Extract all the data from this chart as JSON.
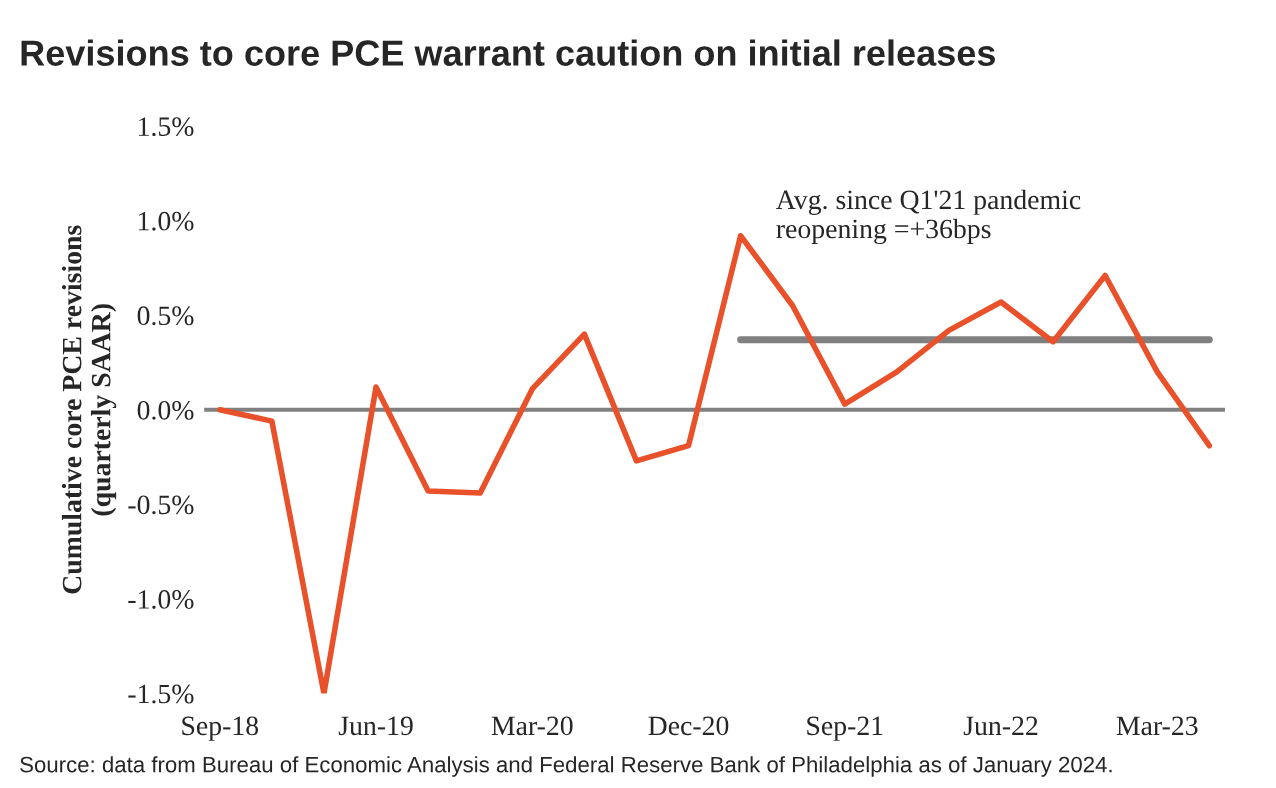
{
  "chart_data": {
    "type": "line",
    "title": "Revisions to core PCE warrant caution on initial releases",
    "ylabel": "Cumulative core PCE revisions\n(quarterly SAAR)",
    "categories": [
      "Sep-18",
      null,
      null,
      "Jun-19",
      null,
      null,
      "Mar-20",
      null,
      null,
      "Dec-20",
      null,
      null,
      "Sep-21",
      null,
      null,
      "Jun-22",
      null,
      null,
      "Mar-23",
      null
    ],
    "series": [
      {
        "color": "#e8512a",
        "values": [
          0,
          -0.06,
          -1.5,
          0.12,
          -0.43,
          -0.44,
          0.11,
          0.4,
          -0.27,
          -0.19,
          0.92,
          0.55,
          0.03,
          0.2,
          0.42,
          0.57,
          0.36,
          0.71,
          0.2,
          -0.19
        ]
      },
      {
        "color": "#808080",
        "values": [
          null,
          null,
          null,
          null,
          null,
          null,
          null,
          null,
          null,
          null,
          0.37,
          0.37,
          0.37,
          0.37,
          0.37,
          0.37,
          0.37,
          0.37,
          0.37,
          0.37
        ]
      }
    ],
    "ylim": [
      -1.5,
      1.5
    ],
    "yticks": [
      {
        "value": -1.5,
        "label": "-1.5%"
      },
      {
        "value": -1.0,
        "label": "-1.0%"
      },
      {
        "value": -0.5,
        "label": "-0.5%"
      },
      {
        "value": 0.0,
        "label": "0.0%"
      },
      {
        "value": 0.5,
        "label": "0.5%"
      },
      {
        "value": 1.0,
        "label": "1.0%"
      },
      {
        "value": 1.5,
        "label": "1.5%"
      }
    ],
    "ref_lines": [
      {
        "axis": "y",
        "value": 0,
        "color": "#808080"
      }
    ],
    "annotations": [
      "Avg. since Q1'21 pandemic\nreopening =+36bps",
      "Source: data from Bureau of Economic Analysis and Federal Reserve Bank of Philadelphia as of January 2024."
    ],
    "grid": false,
    "legend": false
  }
}
